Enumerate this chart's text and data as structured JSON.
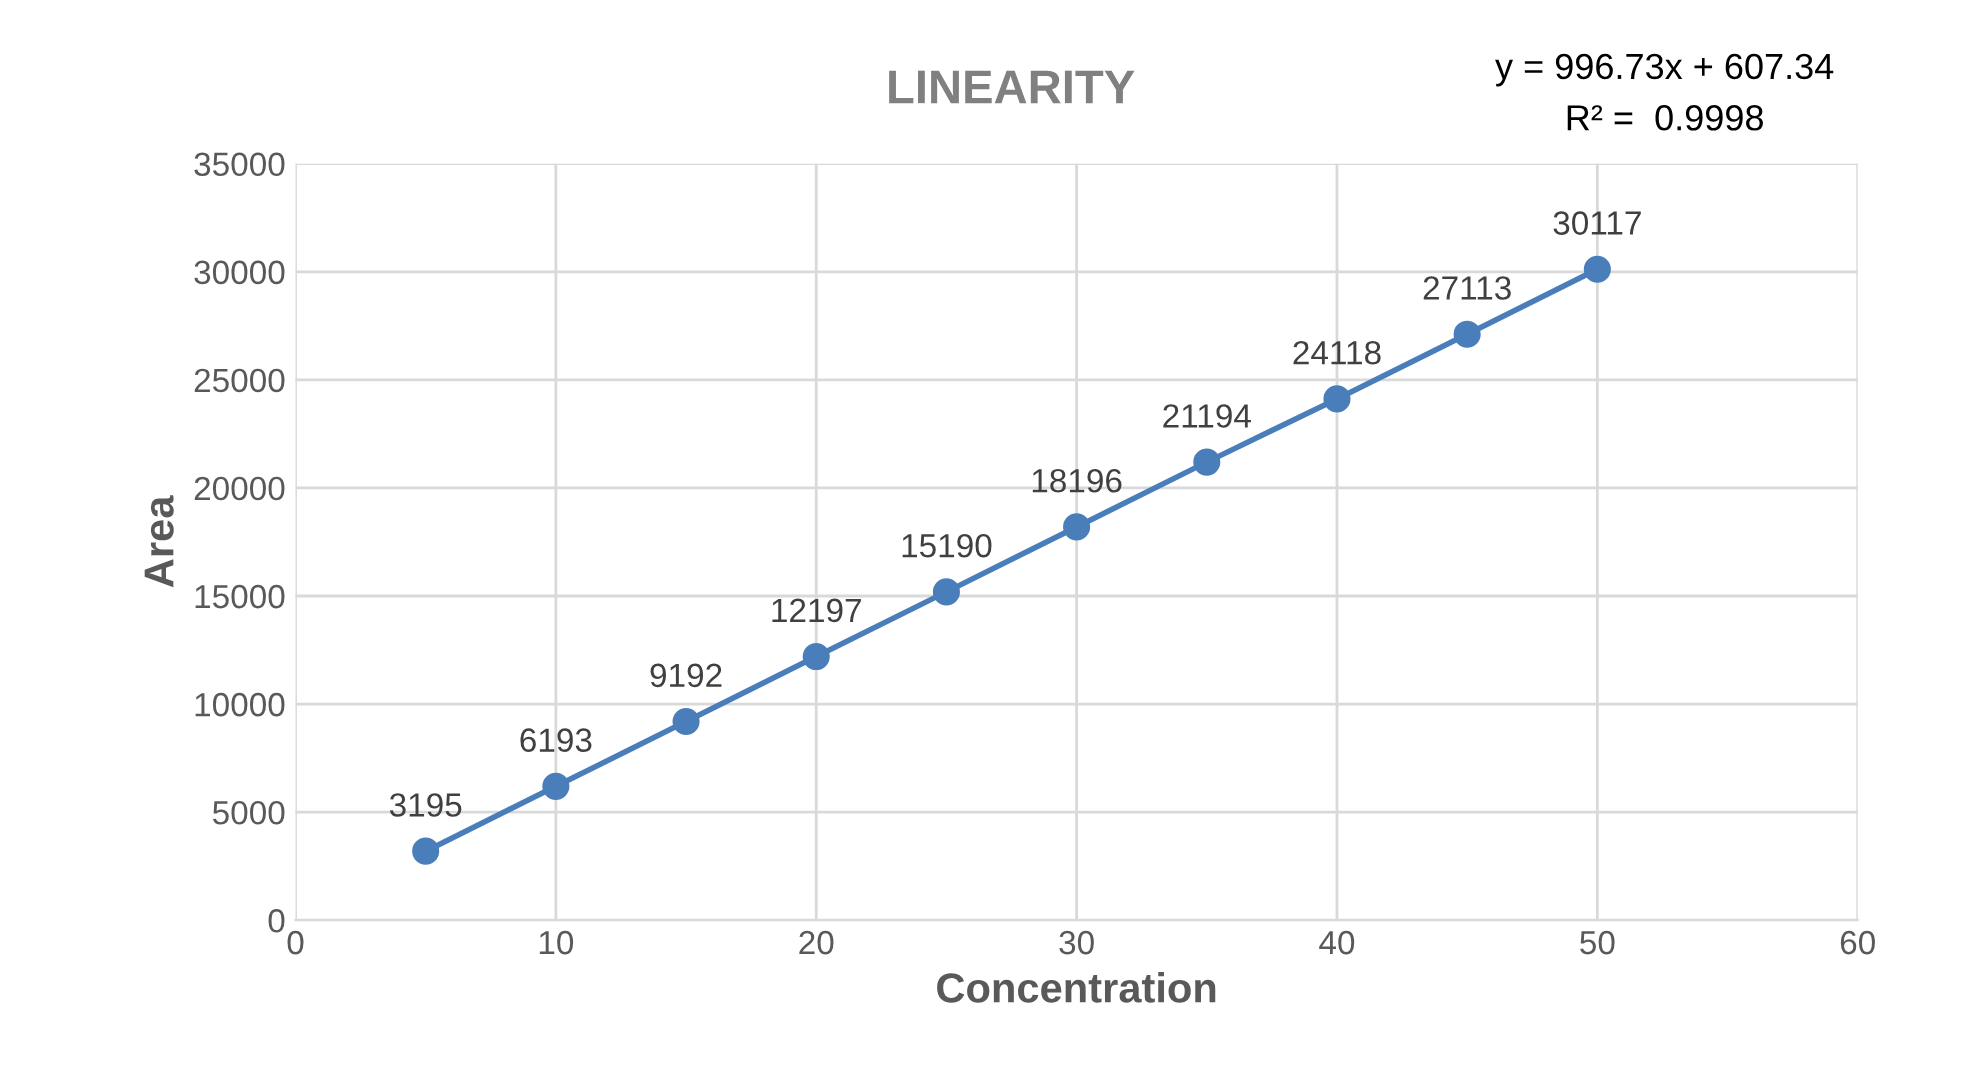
{
  "chart_data": {
    "type": "line",
    "title": "LINEARITY",
    "xlabel": "Concentration",
    "ylabel": "Area",
    "x": [
      5,
      10,
      15,
      20,
      25,
      30,
      35,
      40,
      45,
      50
    ],
    "series": [
      {
        "color": "#4a7ebb",
        "values": [
          3195,
          6193,
          9192,
          12197,
          15190,
          18196,
          21194,
          24118,
          27113,
          30117
        ]
      }
    ],
    "data_labels": true,
    "marker": "circle",
    "line_style": "solid",
    "grid": true,
    "xlim": [
      0,
      60
    ],
    "xticks": [
      0,
      10,
      20,
      30,
      40,
      50,
      60
    ],
    "ylim": [
      0,
      35000
    ],
    "yticks": [
      0,
      5000,
      10000,
      15000,
      20000,
      25000,
      30000,
      35000
    ],
    "annotations": [
      "y = 996.73x + 607.34",
      "R² =  0.9998"
    ]
  }
}
